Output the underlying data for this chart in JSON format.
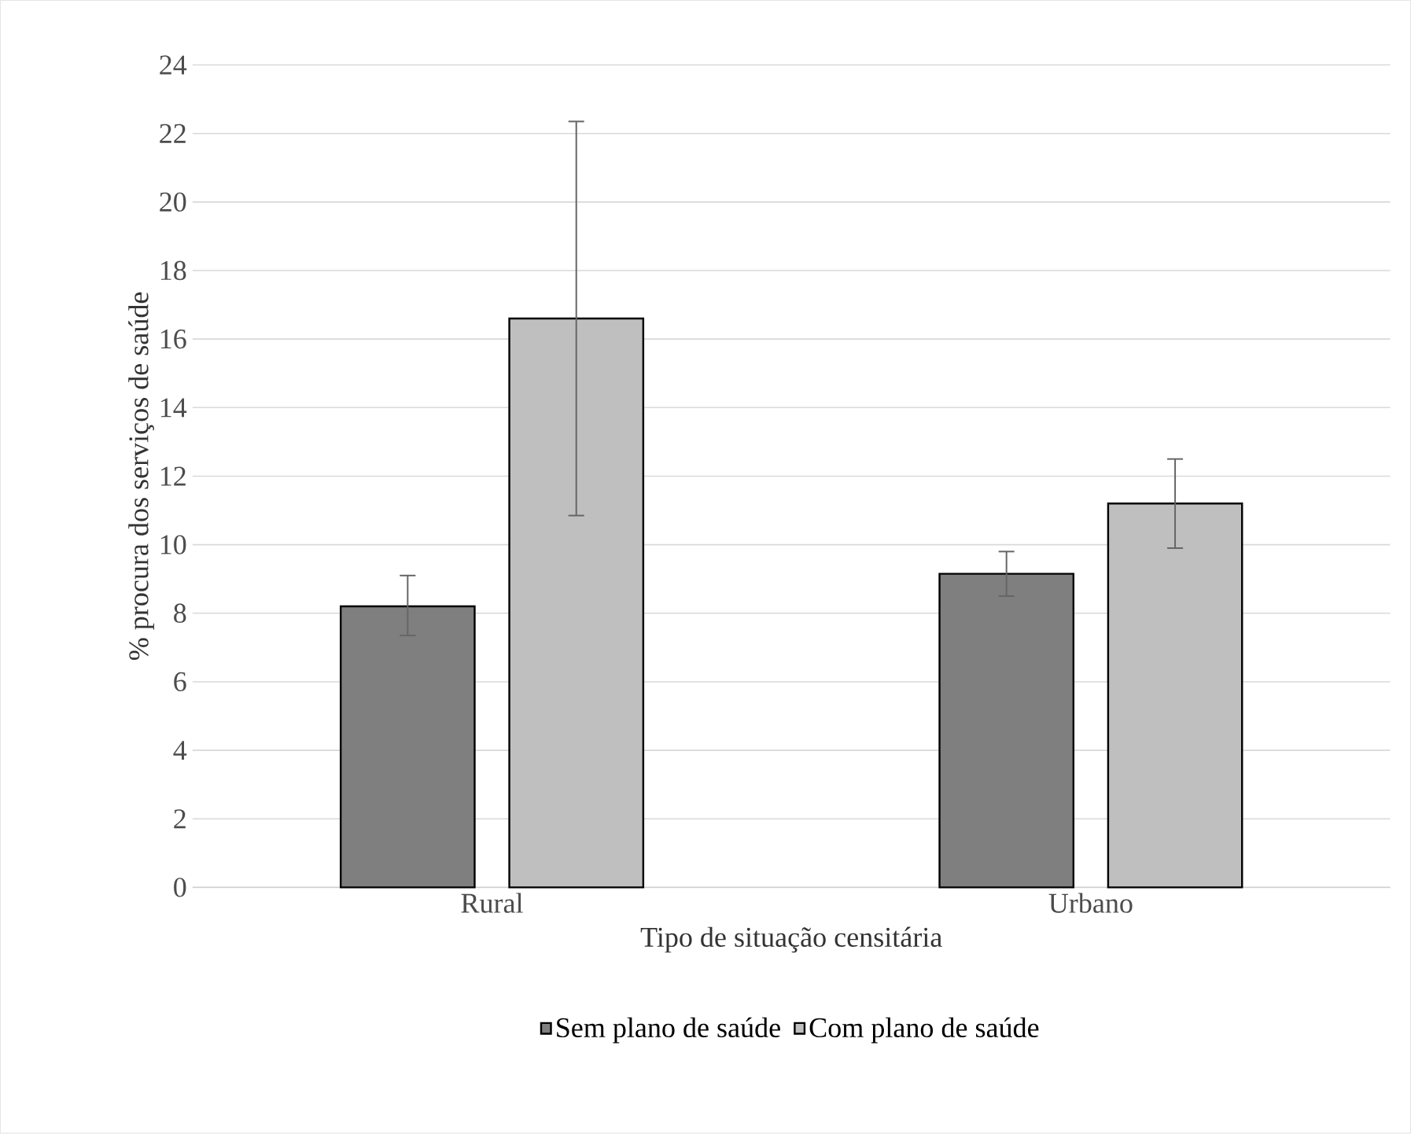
{
  "chart_data": {
    "type": "bar",
    "xlabel": "Tipo de situação censitária",
    "ylabel": "% procura dos serviços de saúde",
    "categories": [
      "Rural",
      "Urbano"
    ],
    "series": [
      {
        "name": "Sem plano de saúde",
        "color": "#7f7f7f",
        "values": [
          8.2,
          9.15
        ],
        "errors": [
          [
            7.35,
            9.1
          ],
          [
            8.5,
            9.8
          ]
        ]
      },
      {
        "name": "Com plano de saúde",
        "color": "#bfbfbf",
        "values": [
          16.6,
          11.2
        ],
        "errors": [
          [
            10.85,
            22.35
          ],
          [
            9.9,
            12.5
          ]
        ]
      }
    ],
    "ylim": [
      0,
      24
    ],
    "yticks": [
      0,
      2,
      4,
      6,
      8,
      10,
      12,
      14,
      16,
      18,
      20,
      22,
      24
    ],
    "grid": "y",
    "legend": "bottom"
  }
}
